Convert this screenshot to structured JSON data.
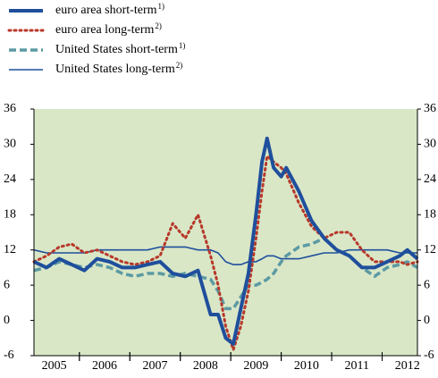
{
  "chart_data": {
    "type": "line",
    "x": [
      2005.1,
      2005.35,
      2005.6,
      2005.85,
      2006.1,
      2006.35,
      2006.6,
      2006.85,
      2007.1,
      2007.35,
      2007.6,
      2007.85,
      2008.1,
      2008.35,
      2008.6,
      2008.75,
      2008.9,
      2009.05,
      2009.2,
      2009.35,
      2009.5,
      2009.62,
      2009.72,
      2009.85,
      2010.0,
      2010.1,
      2010.35,
      2010.6,
      2010.85,
      2011.1,
      2011.35,
      2011.6,
      2011.85,
      2012.1,
      2012.35,
      2012.5,
      2012.7
    ],
    "series": [
      {
        "name": "euro area short-term",
        "note": "1)",
        "color": "#1f4f9c",
        "style": "thick",
        "values": [
          10,
          9,
          10.5,
          9.5,
          8.5,
          10.5,
          10,
          9,
          9,
          9.5,
          10,
          8,
          7.5,
          8.5,
          1,
          1,
          -3,
          -4,
          2,
          8,
          18,
          27,
          31,
          26,
          24.5,
          26,
          22,
          17,
          14,
          12,
          11,
          9,
          9,
          10,
          11,
          12,
          10.5
        ]
      },
      {
        "name": "euro area long-term",
        "note": "2)",
        "color": "#b8382a",
        "style": "dotted",
        "values": [
          10,
          11,
          12.5,
          13,
          11.5,
          12,
          11,
          10,
          9.5,
          10,
          11,
          16.5,
          14,
          18,
          11,
          6,
          -1,
          -5,
          -1,
          5,
          14,
          22,
          28,
          27,
          26,
          25,
          20,
          16,
          14,
          15,
          15,
          12,
          10,
          10,
          10,
          9.5,
          10
        ]
      },
      {
        "name": "United States short-term",
        "note": "1)",
        "color": "#5c9aa3",
        "style": "dashed",
        "values": [
          8.5,
          9,
          10,
          9.5,
          9,
          9.5,
          9,
          8,
          7.5,
          8,
          8,
          7.5,
          8,
          7.5,
          7,
          5,
          2,
          2,
          4,
          6,
          6,
          6.5,
          7,
          8,
          10,
          11,
          12.5,
          13,
          14,
          12,
          11,
          9,
          7.5,
          9,
          9.5,
          10,
          9
        ]
      },
      {
        "name": "United States long-term",
        "note": "2)",
        "color": "#1f4f9c",
        "style": "thin",
        "values": [
          12,
          11.5,
          11.5,
          11.5,
          11.5,
          12,
          12,
          12,
          12,
          12,
          12.5,
          12.5,
          12.5,
          12,
          12,
          11.5,
          10,
          9.5,
          9.5,
          10,
          10,
          10.5,
          11,
          11,
          10.5,
          10.5,
          10.5,
          11,
          11.5,
          11.5,
          12,
          12,
          12,
          12,
          11.5,
          11.5,
          11.5
        ]
      }
    ],
    "xlim": [
      2005.1,
      2012.7
    ],
    "xticks": [
      {
        "value": 2005.5,
        "label": "2005"
      },
      {
        "value": 2006.5,
        "label": "2006"
      },
      {
        "value": 2007.5,
        "label": "2007"
      },
      {
        "value": 2008.5,
        "label": "2008"
      },
      {
        "value": 2009.5,
        "label": "2009"
      },
      {
        "value": 2010.5,
        "label": "2010"
      },
      {
        "value": 2011.5,
        "label": "2011"
      },
      {
        "value": 2012.5,
        "label": "2012"
      }
    ],
    "ylim": [
      -6,
      36
    ],
    "yticks": [
      -6,
      0,
      6,
      12,
      18,
      24,
      30,
      36
    ],
    "y2lim": [
      -6,
      36
    ],
    "y2ticks": [
      -6,
      0,
      6,
      12,
      18,
      24,
      30,
      36
    ],
    "plot_background": "#d9e7c7"
  }
}
